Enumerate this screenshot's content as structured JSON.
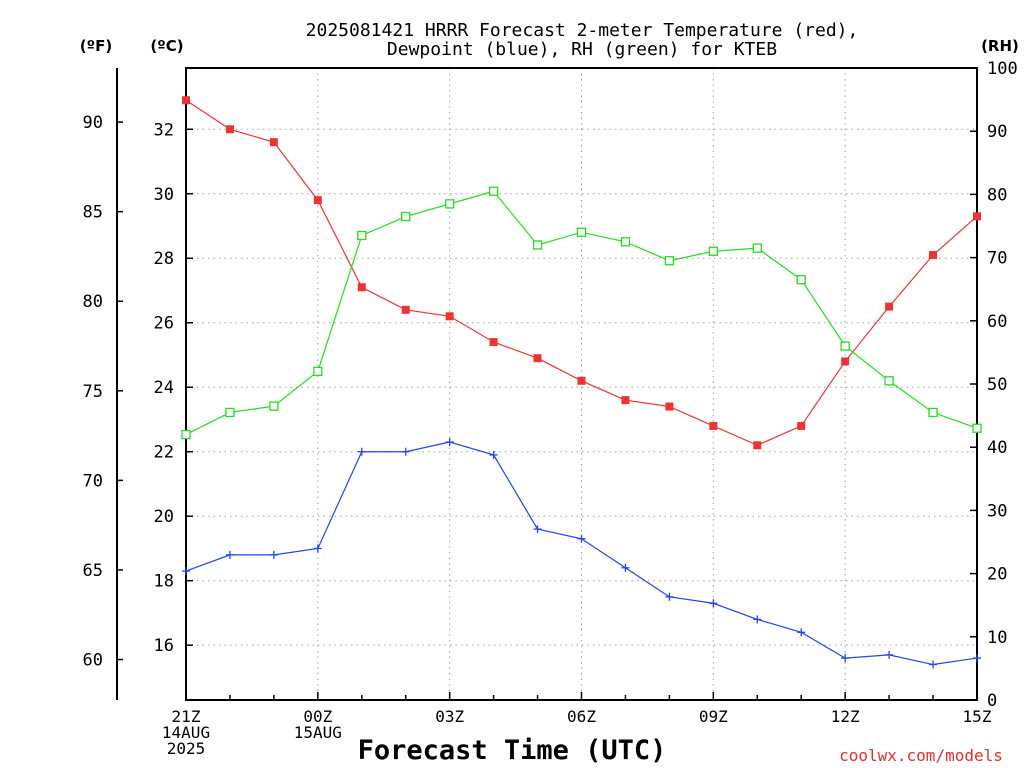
{
  "chart_data": {
    "type": "line",
    "title": [
      "2025081421 HRRR Forecast 2-meter Temperature (red),",
      "Dewpoint (blue), RH (green) for KTEB"
    ],
    "xlabel": "Forecast Time (UTC)",
    "left_outer_axis_label": "(ºF)",
    "left_inner_axis_label": "(ºC)",
    "right_axis_label": "(RH)",
    "credit": "coolwx.com/models",
    "x_ticks": [
      {
        "hour": 0,
        "lines": [
          "21Z",
          "14AUG",
          "2025"
        ]
      },
      {
        "hour": 3,
        "lines": [
          "00Z",
          "15AUG"
        ]
      },
      {
        "hour": 6,
        "lines": [
          "03Z"
        ]
      },
      {
        "hour": 9,
        "lines": [
          "06Z"
        ]
      },
      {
        "hour": 12,
        "lines": [
          "09Z"
        ]
      },
      {
        "hour": 15,
        "lines": [
          "12Z"
        ]
      },
      {
        "hour": 18,
        "lines": [
          "15Z"
        ]
      }
    ],
    "x_range_hours": [
      0,
      18
    ],
    "celsius_range": [
      14.3,
      33.9
    ],
    "celsius_ticks": [
      16,
      18,
      20,
      22,
      24,
      26,
      28,
      30,
      32
    ],
    "fahrenheit_ticks": [
      60,
      65,
      70,
      75,
      80,
      85,
      90
    ],
    "rh_range": [
      0,
      100
    ],
    "rh_ticks": [
      0,
      10,
      20,
      30,
      40,
      50,
      60,
      70,
      80,
      90,
      100
    ],
    "grid": true,
    "colors": {
      "temperature": "#ee3333",
      "dewpoint": "#2244ee",
      "rh": "#22dd22"
    },
    "series": [
      {
        "axis": "celsius",
        "marker": "filled-square",
        "color": "#ee3333",
        "values": [
          32.9,
          32.0,
          31.6,
          29.8,
          27.1,
          26.4,
          26.2,
          25.4,
          24.9,
          24.2,
          23.6,
          23.4,
          22.8,
          22.2,
          22.8,
          24.8,
          26.5,
          28.1,
          29.3
        ]
      },
      {
        "axis": "celsius",
        "marker": "plus",
        "color": "#2244ee",
        "values": [
          18.3,
          18.8,
          18.8,
          19.0,
          22.0,
          22.0,
          22.3,
          21.9,
          19.6,
          19.3,
          18.4,
          17.5,
          17.3,
          16.8,
          16.4,
          15.6,
          15.7,
          15.4,
          15.6
        ]
      },
      {
        "axis": "rh",
        "marker": "open-square",
        "color": "#22dd22",
        "values": [
          42,
          45.5,
          46.5,
          52,
          73.5,
          76.5,
          78.5,
          80.5,
          72,
          74,
          72.5,
          69.5,
          71,
          71.5,
          66.5,
          56,
          50.5,
          45.5,
          43
        ]
      }
    ]
  }
}
